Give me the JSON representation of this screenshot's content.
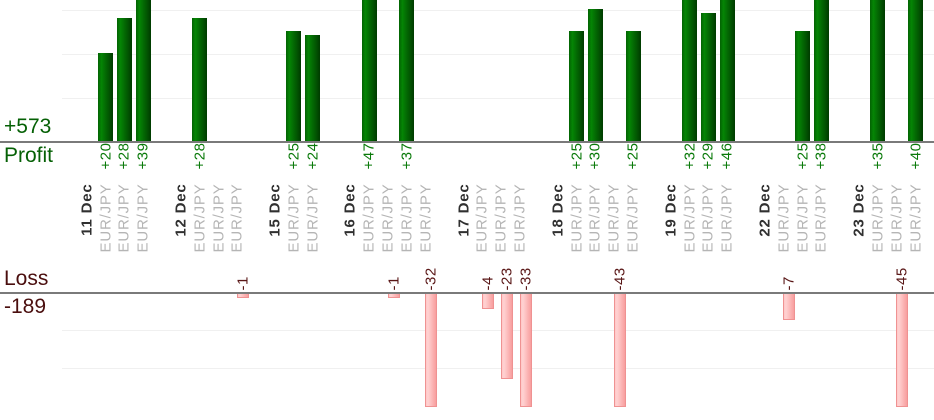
{
  "chart_data": {
    "type": "bar",
    "description": "Daily trading results split into a Profit bar chart (top, green) and a Loss bar chart (bottom, pink), one bar per trade, grouped by date",
    "grid": true,
    "legend_position": "none",
    "tick_rotation": -90,
    "gridline_step": 10,
    "profit_axis": {
      "label": "Profit",
      "total": "+573"
    },
    "loss_axis": {
      "label": "Loss",
      "total": "-189"
    },
    "groups": [
      {
        "date": "11 Dec",
        "trades": [
          {
            "symbol": "EUR/JPY",
            "value": 20
          },
          {
            "symbol": "EUR/JPY",
            "value": 28
          },
          {
            "symbol": "EUR/JPY",
            "value": 39
          }
        ]
      },
      {
        "date": "12 Dec",
        "trades": [
          {
            "symbol": "EUR/JPY",
            "value": 28
          },
          {
            "symbol": "EUR/JPY",
            "value": 0
          },
          {
            "symbol": "EUR/JPY",
            "value": -1
          }
        ]
      },
      {
        "date": "15 Dec",
        "trades": [
          {
            "symbol": "EUR/JPY",
            "value": 25
          },
          {
            "symbol": "EUR/JPY",
            "value": 24
          }
        ]
      },
      {
        "date": "16 Dec",
        "trades": [
          {
            "symbol": "EUR/JPY",
            "value": 47
          },
          {
            "symbol": "EUR/JPY",
            "value": -1
          },
          {
            "symbol": "EUR/JPY",
            "value": 37
          },
          {
            "symbol": "EUR/JPY",
            "value": -32
          }
        ]
      },
      {
        "date": "17 Dec",
        "trades": [
          {
            "symbol": "EUR/JPY",
            "value": -4
          },
          {
            "symbol": "EUR/JPY",
            "value": -23
          },
          {
            "symbol": "EUR/JPY",
            "value": -33
          }
        ]
      },
      {
        "date": "18 Dec",
        "trades": [
          {
            "symbol": "EUR/JPY",
            "value": 25
          },
          {
            "symbol": "EUR/JPY",
            "value": 30
          },
          {
            "symbol": "EUR/JPY",
            "value": -43
          },
          {
            "symbol": "EUR/JPY",
            "value": 25
          }
        ]
      },
      {
        "date": "19 Dec",
        "trades": [
          {
            "symbol": "EUR/JPY",
            "value": 32
          },
          {
            "symbol": "EUR/JPY",
            "value": 29
          },
          {
            "symbol": "EUR/JPY",
            "value": 46
          }
        ]
      },
      {
        "date": "22 Dec",
        "trades": [
          {
            "symbol": "EUR/JPY",
            "value": -7
          },
          {
            "symbol": "EUR/JPY",
            "value": 25
          },
          {
            "symbol": "EUR/JPY",
            "value": 38
          }
        ]
      },
      {
        "date": "23 Dec",
        "trades": [
          {
            "symbol": "EUR/JPY",
            "value": 35
          },
          {
            "symbol": "EUR/JPY",
            "value": -45
          },
          {
            "symbol": "EUR/JPY",
            "value": 40
          }
        ]
      }
    ],
    "colors": {
      "profit_text": "#056005",
      "loss_text": "#4a0e0e",
      "profit_value_text": "#0a7a0a",
      "loss_value_text": "#5a1717",
      "date_label": "#303030",
      "symbol_label": "#b5b5b5",
      "axis_line": "#7a7a7a",
      "grid_line": "#f0f0f0",
      "profit_bar_mid": "#036203",
      "profit_bar_light": "#058505",
      "profit_bar_dark": "#003b00",
      "loss_bar_light": "#ffc7c7",
      "loss_bar_lighter": "#ffd2d2",
      "loss_bar_dark": "#f89e9e",
      "loss_bar_border": "#ef9292"
    }
  }
}
